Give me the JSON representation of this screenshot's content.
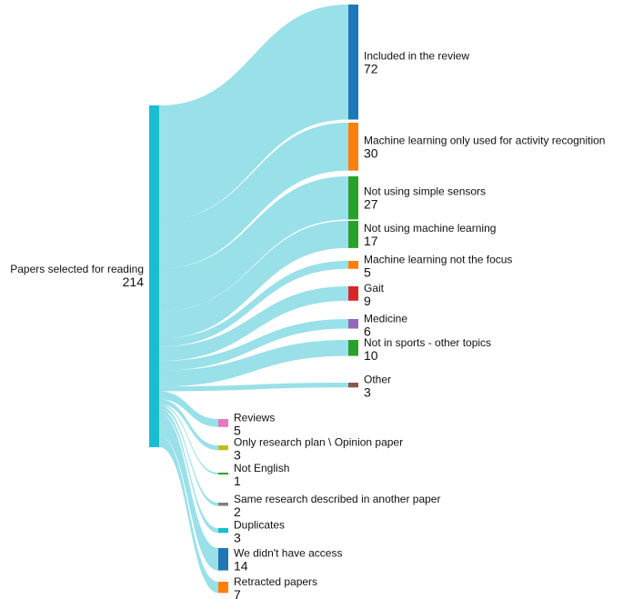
{
  "chart_data": {
    "type": "sankey",
    "source": {
      "name": "Papers selected for reading",
      "value": 214,
      "color": "#17becf"
    },
    "targets": [
      {
        "name": "Included in the review",
        "value": 72,
        "color": "#1f77b4",
        "group": "right"
      },
      {
        "name": "Machine learning only used for activity recognition",
        "value": 30,
        "color": "#ff7f0e",
        "group": "right"
      },
      {
        "name": "Not using simple sensors",
        "value": 27,
        "color": "#2ca02c",
        "group": "right"
      },
      {
        "name": "Not using machine learning",
        "value": 17,
        "color": "#2ca02c",
        "group": "right"
      },
      {
        "name": "Machine learning not the focus",
        "value": 5,
        "color": "#ff7f0e",
        "group": "right"
      },
      {
        "name": "Gait",
        "value": 9,
        "color": "#d62728",
        "group": "right"
      },
      {
        "name": "Medicine",
        "value": 6,
        "color": "#9467bd",
        "group": "right"
      },
      {
        "name": "Not in sports - other topics",
        "value": 10,
        "color": "#2ca02c",
        "group": "right"
      },
      {
        "name": "Other",
        "value": 3,
        "color": "#8c564b",
        "group": "right"
      },
      {
        "name": "Reviews",
        "value": 5,
        "color": "#e377c2",
        "group": "middle"
      },
      {
        "name": "Only research plan \\ Opinion paper",
        "value": 3,
        "color": "#bcbd22",
        "group": "middle"
      },
      {
        "name": "Not English",
        "value": 1,
        "color": "#2ca02c",
        "group": "middle"
      },
      {
        "name": "Same research described in another paper",
        "value": 2,
        "color": "#7f7f7f",
        "group": "middle"
      },
      {
        "name": "Duplicates",
        "value": 3,
        "color": "#17becf",
        "group": "middle"
      },
      {
        "name": "We didn't have access",
        "value": 14,
        "color": "#1f77b4",
        "group": "middle"
      },
      {
        "name": "Retracted papers",
        "value": 7,
        "color": "#ff7f0e",
        "group": "middle"
      }
    ],
    "link_color": "#80d8e4"
  }
}
